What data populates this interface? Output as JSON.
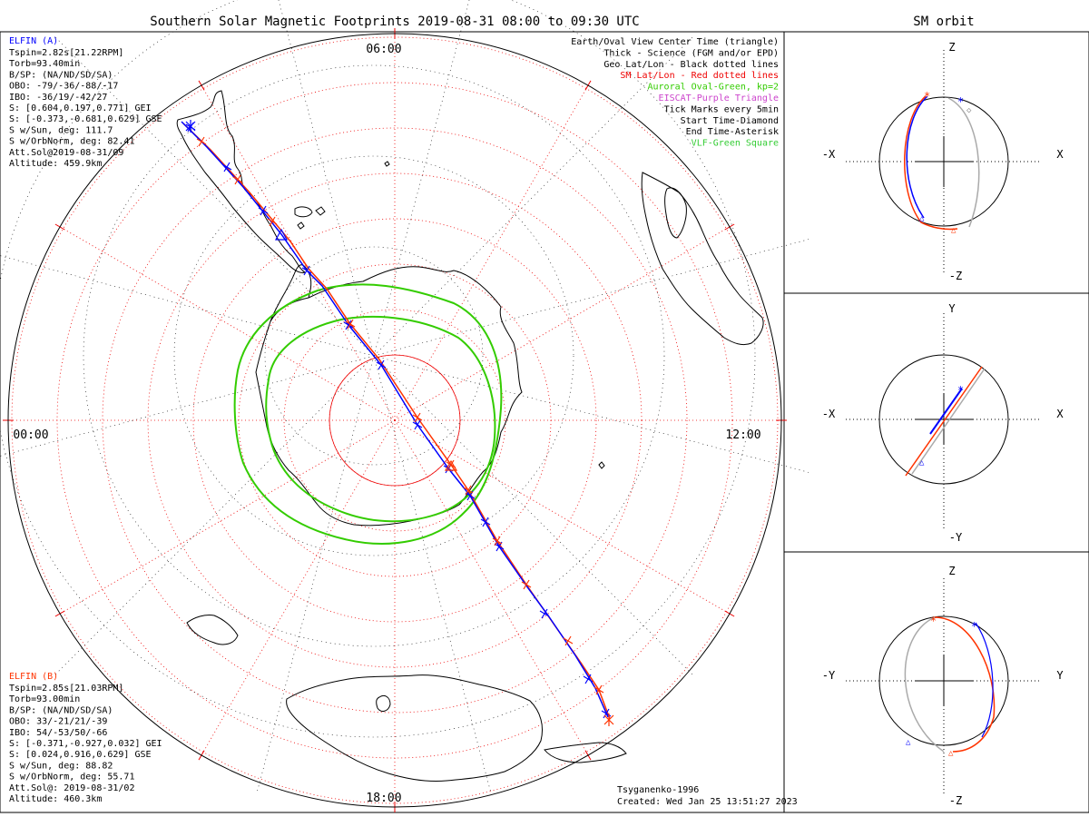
{
  "title": "Southern Solar Magnetic Footprints 2019-08-31 08:00 to 09:30 UTC",
  "right_title": "SM orbit",
  "clock_labels": {
    "top": "06:00",
    "left": "00:00",
    "right": "12:00",
    "bottom": "18:00"
  },
  "colors": {
    "elfin_a": "#0000ff",
    "elfin_b": "#ff3300",
    "oval": "#33cc00",
    "sm_grid": "#ee0000",
    "geo_grid": "#000000",
    "eiscat": "#cc44cc",
    "vlf": "#33cc33",
    "orbit_gray": "#aaaaaa"
  },
  "elfin_a": {
    "name": "ELFIN (A)",
    "lines": [
      "Tspin=2.82s[21.22RPM]",
      "Torb=93.40min",
      "B/SP: (NA/ND/SD/SA)",
      "OBO: -79/-36/-88/-17",
      "IBO: -36/19/-42/27",
      "S: [0.604,0.197,0.771] GEI",
      "S: [-0.373,-0.681,0.629] GSE",
      "S w/Sun, deg: 111.7",
      "S w/OrbNorm, deg: 82.41",
      "Att.Sol@2019-08-31/09",
      "Altitude: 459.9km"
    ]
  },
  "elfin_b": {
    "name": "ELFIN (B)",
    "lines": [
      "Tspin=2.85s[21.03RPM]",
      "Torb=93.00min",
      "B/SP: (NA/ND/SD/SA)",
      "OBO: 33/-21/21/-39",
      "IBO: 54/-53/50/-66",
      "S: [-0.371,-0.927,0.032] GEI",
      "S: [0.024,0.916,0.629] GSE",
      "S w/Sun, deg: 88.82",
      "S w/OrbNorm, deg: 55.71",
      "Att.Sol@: 2019-08-31/02",
      "Altitude: 460.3km"
    ]
  },
  "legend": [
    {
      "text": "Earth/Oval View Center Time (triangle)",
      "color": "#000000"
    },
    {
      "text": "Thick - Science (FGM and/or EPD)",
      "color": "#000000"
    },
    {
      "text": "Geo Lat/Lon - Black dotted lines",
      "color": "#000000"
    },
    {
      "text": "SM Lat/Lon - Red dotted lines",
      "color": "#ee0000"
    },
    {
      "text": "Auroral Oval-Green, kp=2",
      "color": "#33cc00"
    },
    {
      "text": "EISCAT-Purple Triangle",
      "color": "#cc44cc"
    },
    {
      "text": "Tick Marks every 5min",
      "color": "#000000"
    },
    {
      "text": "Start Time-Diamond",
      "color": "#000000"
    },
    {
      "text": "End Time-Asterisk",
      "color": "#000000"
    },
    {
      "text": "VLF-Green Square",
      "color": "#33cc33"
    }
  ],
  "credits": [
    "Tsyganenko-1996",
    "Created: Wed Jan 25 13:51:27 2023"
  ],
  "panels": [
    {
      "axes": {
        "top": "Z",
        "bottom": "-Z",
        "left": "-X",
        "right": "X"
      }
    },
    {
      "axes": {
        "top": "Y",
        "bottom": "-Y",
        "left": "-X",
        "right": "X"
      }
    },
    {
      "axes": {
        "top": "Z",
        "bottom": "-Z",
        "left": "-Y",
        "right": "Y"
      }
    }
  ]
}
